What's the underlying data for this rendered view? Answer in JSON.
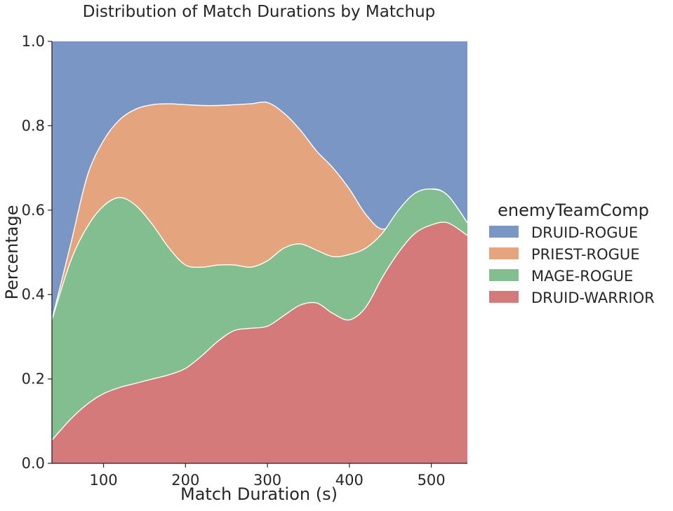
{
  "chart_data": {
    "type": "area",
    "stacked": "fill",
    "title": "Distribution of Match Durations by Matchup",
    "xlabel": "Match Duration (s)",
    "ylabel": "Percentage",
    "xlim": [
      37,
      544
    ],
    "ylim": [
      0,
      1
    ],
    "xticks": [
      100,
      200,
      300,
      400,
      500
    ],
    "xtick_labels": [
      "100",
      "200",
      "300",
      "400",
      "500"
    ],
    "yticks": [
      0,
      0.2,
      0.4,
      0.6,
      0.8,
      1.0
    ],
    "ytick_labels": [
      "0.0",
      "0.2",
      "0.4",
      "0.6",
      "0.8",
      "1.0"
    ],
    "grid": false,
    "legend": {
      "title": "enemyTeamComp",
      "placement": "right",
      "entries": [
        "DRUID-ROGUE",
        "PRIEST-ROGUE",
        "MAGE-ROGUE",
        "DRUID-WARRIOR"
      ]
    },
    "x": [
      37,
      60,
      80,
      100,
      120,
      140,
      160,
      180,
      200,
      220,
      240,
      260,
      280,
      300,
      320,
      340,
      360,
      380,
      400,
      420,
      440,
      460,
      480,
      500,
      520,
      544
    ],
    "series": [
      {
        "name": "DRUID-WARRIOR",
        "color": "#d47a7b",
        "cumulative": [
          0.055,
          0.105,
          0.14,
          0.165,
          0.18,
          0.19,
          0.2,
          0.21,
          0.225,
          0.255,
          0.29,
          0.315,
          0.32,
          0.325,
          0.35,
          0.375,
          0.38,
          0.355,
          0.34,
          0.37,
          0.44,
          0.5,
          0.545,
          0.565,
          0.57,
          0.54
        ]
      },
      {
        "name": "MAGE-ROGUE",
        "color": "#82be8e",
        "cumulative": [
          0.34,
          0.48,
          0.56,
          0.61,
          0.63,
          0.61,
          0.565,
          0.51,
          0.47,
          0.465,
          0.47,
          0.47,
          0.465,
          0.48,
          0.51,
          0.52,
          0.505,
          0.49,
          0.495,
          0.51,
          0.545,
          0.6,
          0.64,
          0.65,
          0.635,
          0.57
        ]
      },
      {
        "name": "PRIEST-ROGUE",
        "color": "#e4a47e",
        "cumulative": [
          0.34,
          0.52,
          0.68,
          0.765,
          0.815,
          0.84,
          0.85,
          0.852,
          0.85,
          0.848,
          0.848,
          0.85,
          0.852,
          0.855,
          0.83,
          0.79,
          0.74,
          0.7,
          0.65,
          0.59,
          0.555,
          0.58,
          0.625,
          0.65,
          0.635,
          0.57
        ]
      },
      {
        "name": "DRUID-ROGUE",
        "color": "#7a96c4",
        "cumulative": [
          1.0,
          1.0,
          1.0,
          1.0,
          1.0,
          1.0,
          1.0,
          1.0,
          1.0,
          1.0,
          1.0,
          1.0,
          1.0,
          1.0,
          1.0,
          1.0,
          1.0,
          1.0,
          1.0,
          1.0,
          1.0,
          1.0,
          1.0,
          1.0,
          1.0,
          1.0
        ]
      }
    ]
  }
}
